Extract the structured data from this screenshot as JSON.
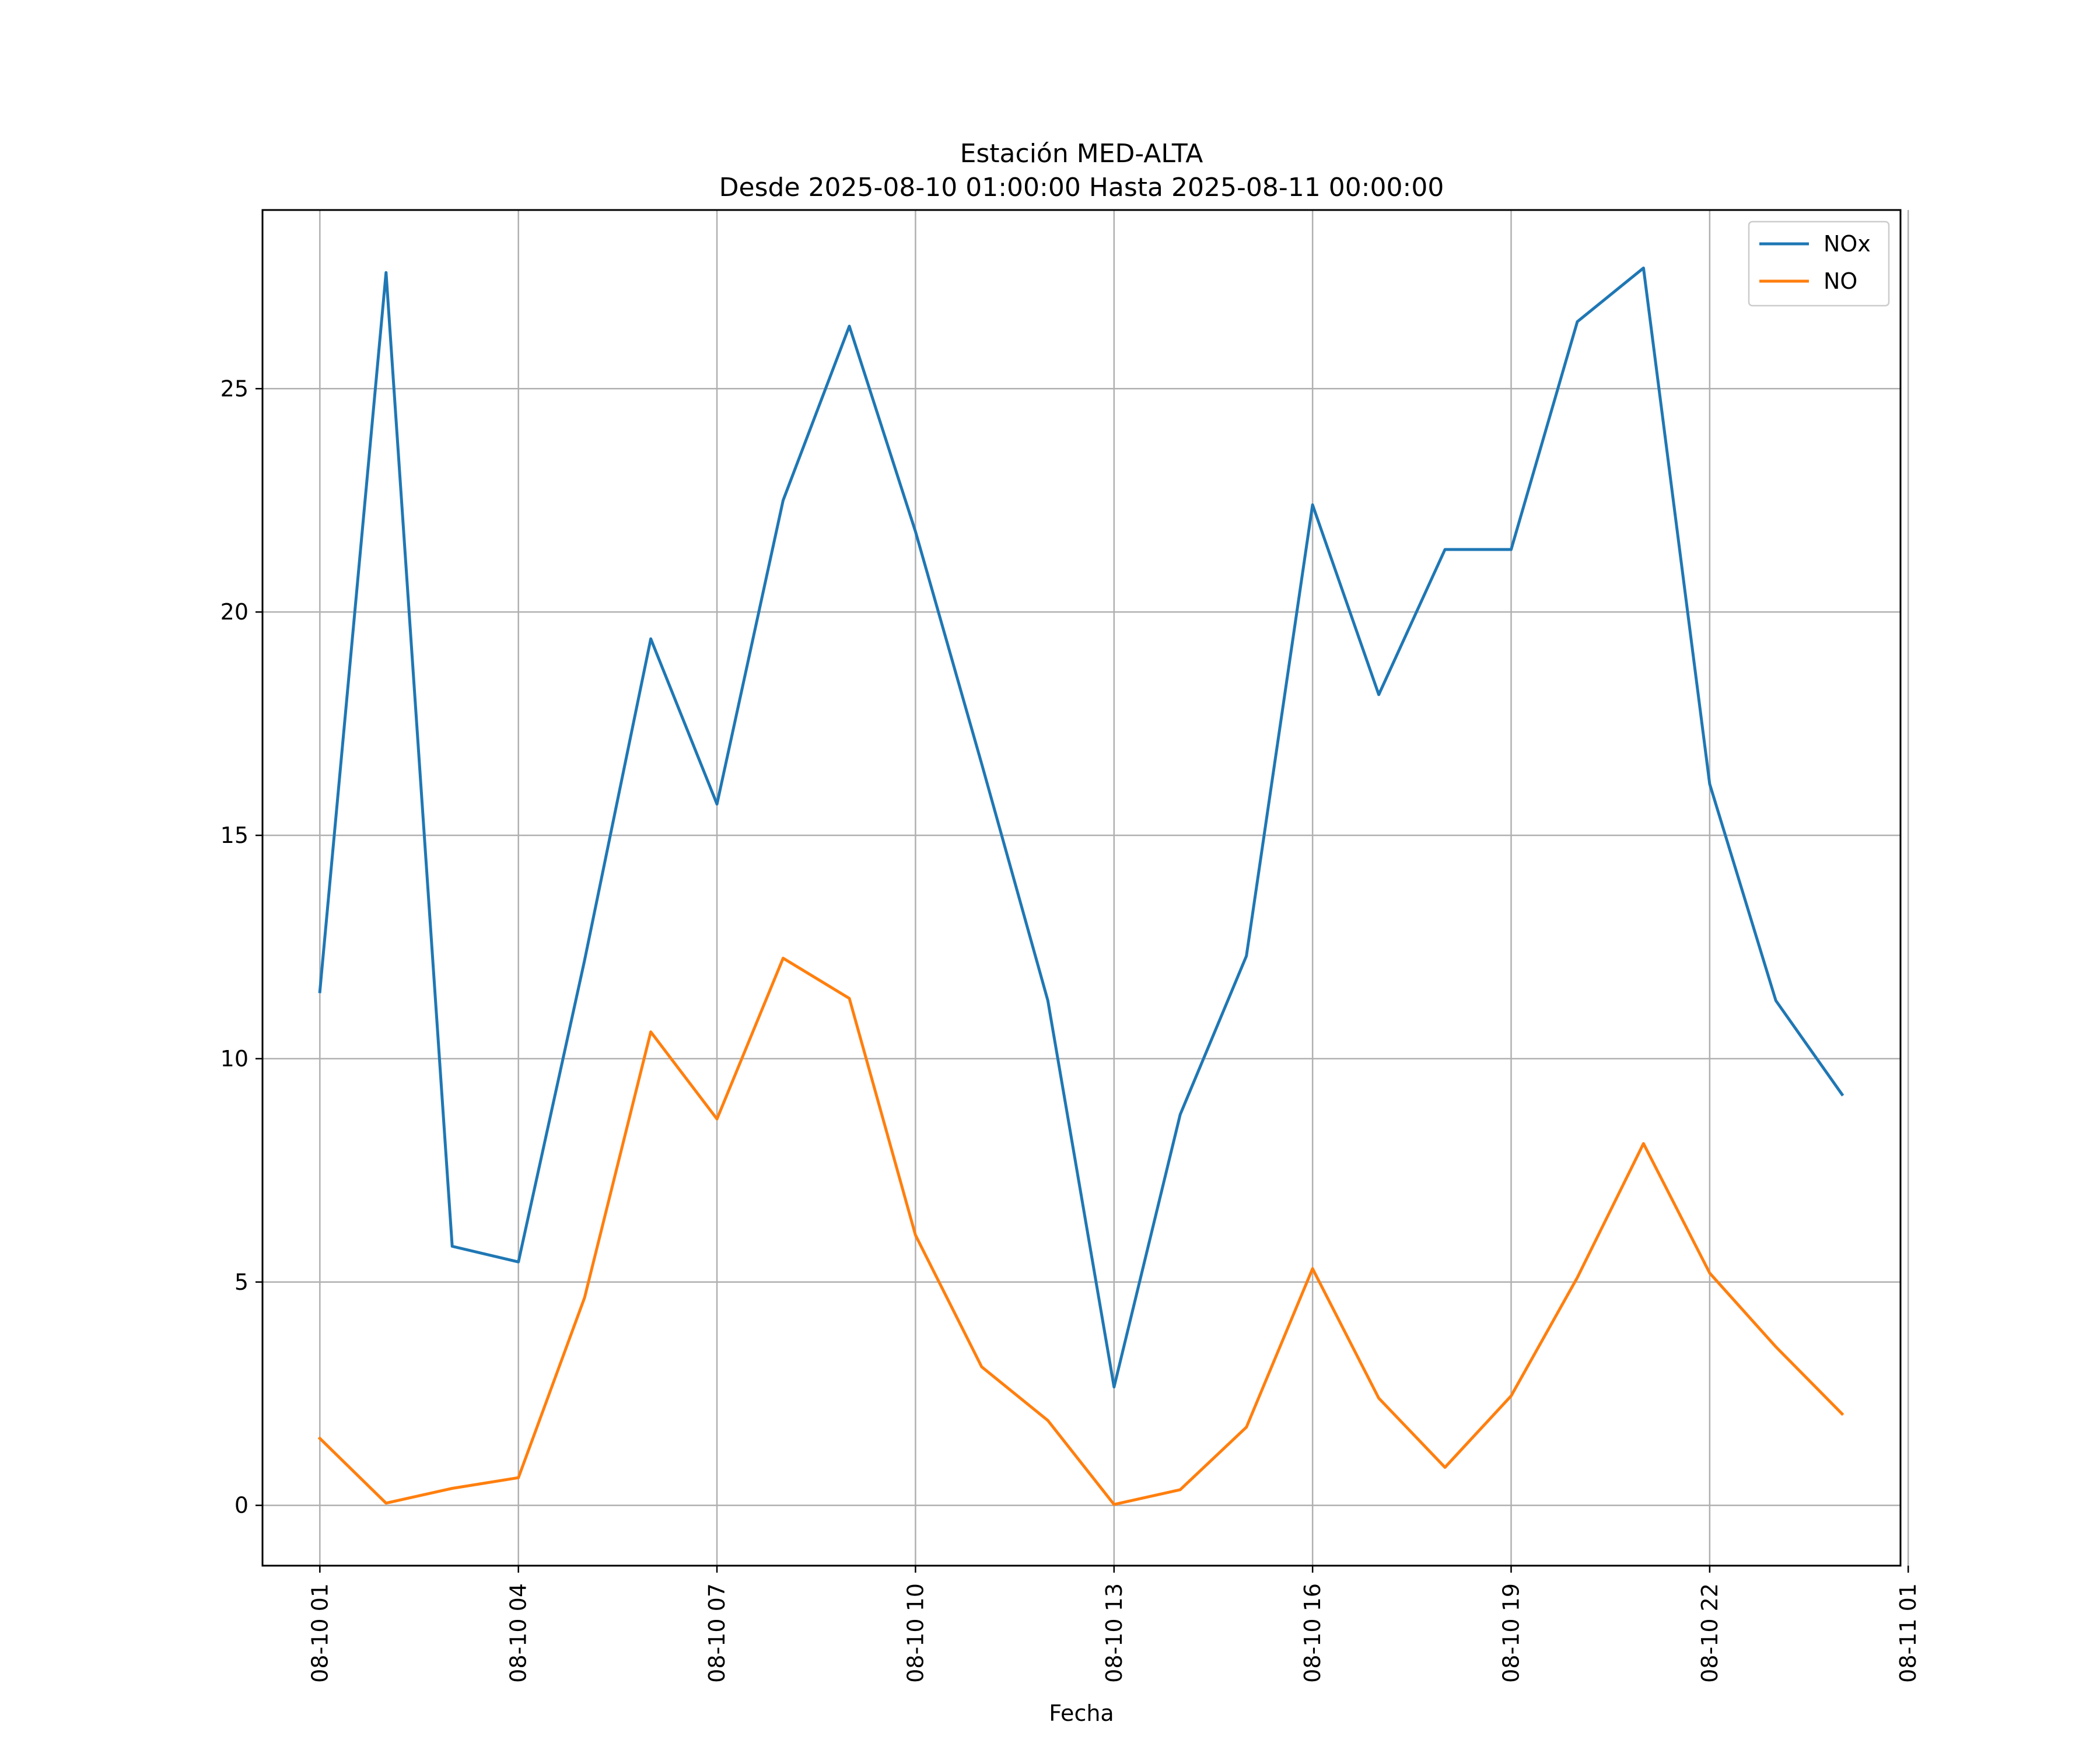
{
  "chart_data": {
    "type": "line",
    "title": "Estación MED-ALTA",
    "subtitle": "Desde 2025-08-10 01:00:00 Hasta 2025-08-11 00:00:00",
    "xlabel": "Fecha",
    "ylabel": "",
    "x": [
      "2025-08-10 01:00",
      "2025-08-10 02:00",
      "2025-08-10 03:00",
      "2025-08-10 04:00",
      "2025-08-10 05:00",
      "2025-08-10 06:00",
      "2025-08-10 07:00",
      "2025-08-10 08:00",
      "2025-08-10 09:00",
      "2025-08-10 10:00",
      "2025-08-10 11:00",
      "2025-08-10 12:00",
      "2025-08-10 13:00",
      "2025-08-10 14:00",
      "2025-08-10 15:00",
      "2025-08-10 16:00",
      "2025-08-10 17:00",
      "2025-08-10 18:00",
      "2025-08-10 19:00",
      "2025-08-10 20:00",
      "2025-08-10 21:00",
      "2025-08-10 22:00",
      "2025-08-10 23:00",
      "2025-08-11 00:00"
    ],
    "xlim": [
      "2025-08-10 00:08",
      "2025-08-11 00:53"
    ],
    "ylim": [
      -1.35,
      29.0
    ],
    "xticks": [
      "2025-08-10 01:00",
      "2025-08-10 04:00",
      "2025-08-10 07:00",
      "2025-08-10 10:00",
      "2025-08-10 13:00",
      "2025-08-10 16:00",
      "2025-08-10 19:00",
      "2025-08-10 22:00",
      "2025-08-11 01:00"
    ],
    "xtick_labels": [
      "08-10 01",
      "08-10 04",
      "08-10 07",
      "08-10 10",
      "08-10 13",
      "08-10 16",
      "08-10 19",
      "08-10 22",
      "08-11 01"
    ],
    "yticks": [
      0,
      5,
      10,
      15,
      20,
      25
    ],
    "ytick_labels": [
      "0",
      "5",
      "10",
      "15",
      "20",
      "25"
    ],
    "grid": true,
    "legend_position": "top-right",
    "series": [
      {
        "name": "NOx",
        "color": "#1f77b4",
        "values": [
          11.5,
          27.6,
          5.8,
          5.45,
          12.2,
          19.4,
          15.7,
          22.5,
          26.4,
          21.8,
          16.6,
          11.3,
          2.65,
          8.75,
          12.3,
          22.4,
          18.15,
          21.4,
          21.4,
          26.5,
          27.7,
          16.15,
          11.3,
          9.2
        ]
      },
      {
        "name": "NO",
        "color": "#ff7f0e",
        "values": [
          1.5,
          0.05,
          0.38,
          0.62,
          4.65,
          10.6,
          8.65,
          12.25,
          11.35,
          6.05,
          3.1,
          1.9,
          0.02,
          0.35,
          1.75,
          5.3,
          2.4,
          0.85,
          2.45,
          5.1,
          8.1,
          5.2,
          3.55,
          2.05
        ]
      }
    ]
  }
}
